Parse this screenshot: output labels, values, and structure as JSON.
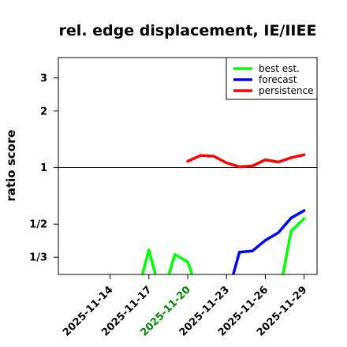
{
  "chart_data": {
    "type": "line",
    "title": "rel. edge displacement, IE/IIEE",
    "ylabel": "ratio score",
    "xlabel": "",
    "y_scale": "log",
    "ylim": [
      0.27,
      3.85
    ],
    "reference_line": 1,
    "y_ticks": [
      {
        "value": 0.3333,
        "label": "1/3"
      },
      {
        "value": 0.5,
        "label": "1/2"
      },
      {
        "value": 1,
        "label": "1"
      },
      {
        "value": 2,
        "label": "2"
      },
      {
        "value": 3,
        "label": "3"
      }
    ],
    "x_ticks": [
      {
        "date": "2025-11-14",
        "label": "2025-11-14",
        "color": "#000000"
      },
      {
        "date": "2025-11-17",
        "label": "2025-11-17",
        "color": "#000000"
      },
      {
        "date": "2025-11-20",
        "label": "2025-11-20",
        "color": "#008000"
      },
      {
        "date": "2025-11-23",
        "label": "2025-11-23",
        "color": "#000000"
      },
      {
        "date": "2025-11-26",
        "label": "2025-11-26",
        "color": "#000000"
      },
      {
        "date": "2025-11-29",
        "label": "2025-11-29",
        "color": "#000000"
      }
    ],
    "xlim": [
      "2025-11-10",
      "2025-11-30"
    ],
    "legend_position": "top-right",
    "series": [
      {
        "name": "best est.",
        "color": "#00ff00",
        "points": [
          {
            "x": "2025-11-14",
            "y": null
          },
          {
            "x": "2025-11-15",
            "y": null
          },
          {
            "x": "2025-11-16",
            "y": 0.2
          },
          {
            "x": "2025-11-17",
            "y": 0.365
          },
          {
            "x": "2025-11-18",
            "y": 0.2
          },
          {
            "x": "2025-11-19",
            "y": 0.345
          },
          {
            "x": "2025-11-20",
            "y": 0.315
          },
          {
            "x": "2025-11-21",
            "y": 0.2
          },
          {
            "x": "2025-11-22",
            "y": null
          },
          {
            "x": "2025-11-23",
            "y": null
          },
          {
            "x": "2025-11-24",
            "y": null
          },
          {
            "x": "2025-11-25",
            "y": null
          },
          {
            "x": "2025-11-26",
            "y": null
          },
          {
            "x": "2025-11-27",
            "y": 0.2
          },
          {
            "x": "2025-11-28",
            "y": 0.46
          },
          {
            "x": "2025-11-29",
            "y": 0.535
          }
        ]
      },
      {
        "name": "forecast",
        "color": "#0000ff",
        "points": [
          {
            "x": "2025-11-14",
            "y": null
          },
          {
            "x": "2025-11-15",
            "y": null
          },
          {
            "x": "2025-11-16",
            "y": null
          },
          {
            "x": "2025-11-17",
            "y": null
          },
          {
            "x": "2025-11-18",
            "y": null
          },
          {
            "x": "2025-11-19",
            "y": null
          },
          {
            "x": "2025-11-20",
            "y": null
          },
          {
            "x": "2025-11-21",
            "y": null
          },
          {
            "x": "2025-11-22",
            "y": null
          },
          {
            "x": "2025-11-23",
            "y": 0.2
          },
          {
            "x": "2025-11-24",
            "y": 0.355
          },
          {
            "x": "2025-11-25",
            "y": 0.36
          },
          {
            "x": "2025-11-26",
            "y": 0.41
          },
          {
            "x": "2025-11-27",
            "y": 0.45
          },
          {
            "x": "2025-11-28",
            "y": 0.54
          },
          {
            "x": "2025-11-29",
            "y": 0.59
          }
        ]
      },
      {
        "name": "persistence",
        "color": "#ff0000",
        "points": [
          {
            "x": "2025-11-14",
            "y": null
          },
          {
            "x": "2025-11-15",
            "y": null
          },
          {
            "x": "2025-11-16",
            "y": null
          },
          {
            "x": "2025-11-17",
            "y": null
          },
          {
            "x": "2025-11-18",
            "y": null
          },
          {
            "x": "2025-11-19",
            "y": null
          },
          {
            "x": "2025-11-20",
            "y": 1.08
          },
          {
            "x": "2025-11-21",
            "y": 1.16
          },
          {
            "x": "2025-11-22",
            "y": 1.15
          },
          {
            "x": "2025-11-23",
            "y": 1.06
          },
          {
            "x": "2025-11-24",
            "y": 1.01
          },
          {
            "x": "2025-11-25",
            "y": 1.02
          },
          {
            "x": "2025-11-26",
            "y": 1.1
          },
          {
            "x": "2025-11-27",
            "y": 1.07
          },
          {
            "x": "2025-11-28",
            "y": 1.13
          },
          {
            "x": "2025-11-29",
            "y": 1.17
          }
        ]
      }
    ]
  }
}
